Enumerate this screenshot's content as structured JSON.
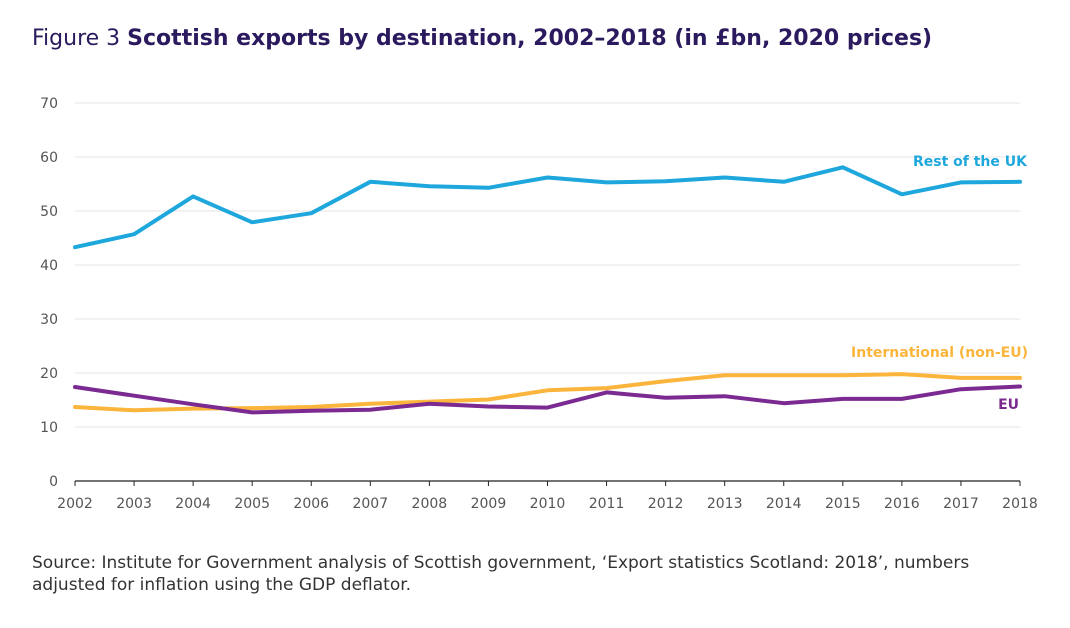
{
  "figure": {
    "lead": "Figure 3",
    "title": "Scottish exports by destination, 2002–2018 (in £bn, 2020 prices)"
  },
  "source": "Source: Institute for Government analysis of Scottish government, ‘Export statistics Scotland: 2018’, numbers adjusted for inflation using the GDP deflator.",
  "chart_data": {
    "type": "line",
    "title": "Scottish exports by destination, 2002–2018 (in £bn, 2020 prices)",
    "xlabel": "",
    "ylabel": "",
    "x": [
      2002,
      2003,
      2004,
      2005,
      2006,
      2007,
      2008,
      2009,
      2010,
      2011,
      2012,
      2013,
      2014,
      2015,
      2016,
      2017,
      2018
    ],
    "ylim": [
      0,
      70
    ],
    "yticks": [
      0,
      10,
      20,
      30,
      40,
      50,
      60,
      70
    ],
    "grid": true,
    "series": [
      {
        "name": "Rest of the UK",
        "color": "#1ea7dc",
        "values": [
          43.3,
          45.7,
          52.7,
          47.9,
          49.6,
          55.4,
          54.6,
          54.3,
          56.2,
          55.3,
          55.5,
          56.2,
          55.4,
          58.1,
          53.1,
          55.3,
          55.4
        ]
      },
      {
        "name": "International (non-EU)",
        "color": "#fbb53c",
        "values": [
          13.7,
          13.1,
          13.4,
          13.5,
          13.7,
          14.3,
          14.7,
          15.1,
          16.8,
          17.2,
          18.5,
          19.6,
          19.6,
          19.6,
          19.8,
          19.1,
          19.1
        ]
      },
      {
        "name": "EU",
        "color": "#7b2a91",
        "values": [
          17.4,
          15.8,
          14.2,
          12.7,
          13.0,
          13.2,
          14.3,
          13.8,
          13.6,
          16.4,
          15.4,
          15.7,
          14.4,
          15.2,
          15.2,
          17.0,
          17.5
        ]
      }
    ]
  }
}
